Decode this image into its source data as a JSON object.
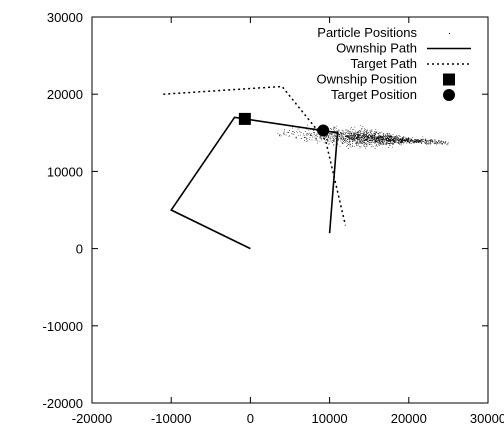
{
  "chart_data": {
    "type": "line",
    "title": "",
    "xlabel": "",
    "ylabel": "",
    "xlim": [
      -20000,
      30000
    ],
    "ylim": [
      -20000,
      30000
    ],
    "xticks": [
      -20000,
      -10000,
      0,
      10000,
      20000,
      30000
    ],
    "yticks": [
      -20000,
      -10000,
      0,
      10000,
      20000,
      30000
    ],
    "grid": false,
    "legend_position": "top-right",
    "legend": [
      {
        "label": "Particle Positions",
        "style": "dots"
      },
      {
        "label": "Ownship Path",
        "style": "solid-line"
      },
      {
        "label": "Target Path",
        "style": "dotted-line"
      },
      {
        "label": "Ownship Position",
        "style": "filled-square"
      },
      {
        "label": "Target Position",
        "style": "filled-circle"
      }
    ],
    "series": [
      {
        "name": "Ownship Path",
        "x": [
          0,
          -10000,
          -2000,
          11000,
          10000
        ],
        "y": [
          0,
          5000,
          17000,
          15000,
          2000
        ]
      },
      {
        "name": "Target Path",
        "x": [
          -11000,
          4000,
          9500,
          12000
        ],
        "y": [
          20000,
          21000,
          14000,
          3000
        ]
      }
    ],
    "markers": [
      {
        "name": "Ownship Position",
        "x": -700,
        "y": 16800,
        "shape": "square"
      },
      {
        "name": "Target Position",
        "x": 9200,
        "y": 15300,
        "shape": "circle"
      }
    ],
    "particle_cloud": {
      "name": "Particle Positions",
      "x_range": [
        3000,
        25000
      ],
      "y_range": [
        12000,
        16500
      ],
      "center": [
        15000,
        14300
      ],
      "count_approx": 3000
    }
  }
}
